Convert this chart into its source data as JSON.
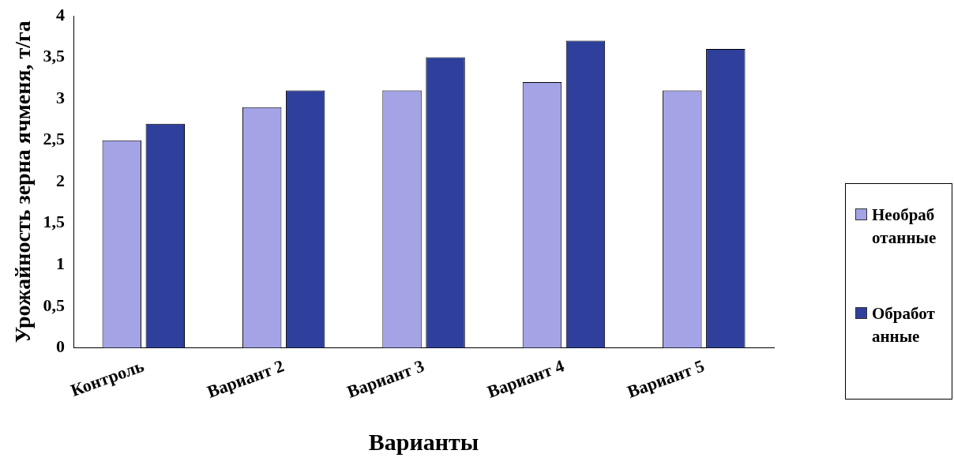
{
  "chart_data": {
    "type": "bar",
    "xlabel": "Варианты",
    "ylabel": "Урожайность зерна ячменя, т/га",
    "categories": [
      "Контроль",
      "Вариант 2",
      "Вариант 3",
      "Вариант 4",
      "Вариант 5"
    ],
    "series": [
      {
        "name": "Необработанные",
        "color": "#a3a3e6",
        "values": [
          2.5,
          2.9,
          3.1,
          3.2,
          3.1
        ]
      },
      {
        "name": "Обработанные",
        "color": "#2e409c",
        "values": [
          2.7,
          3.1,
          3.5,
          3.7,
          3.6
        ]
      }
    ],
    "ylim": [
      0,
      4
    ],
    "yticks": [
      0,
      {
        "value": 0.5,
        "label": "0,5"
      },
      1,
      {
        "value": 1.5,
        "label": "1,5"
      },
      2,
      {
        "value": 2.5,
        "label": "2,5"
      },
      3,
      {
        "value": 3.5,
        "label": "3,5"
      },
      4
    ],
    "grid": false,
    "legend": "right"
  }
}
